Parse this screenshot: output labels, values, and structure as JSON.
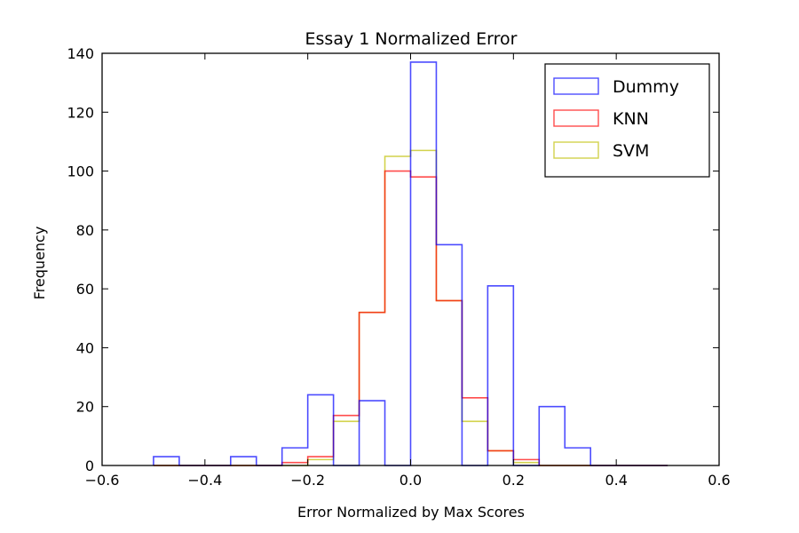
{
  "chart_data": {
    "type": "histogram",
    "title": "Essay 1 Normalized Error",
    "xlabel": "Error Normalized by Max Scores",
    "ylabel": "Frequency",
    "xlim": [
      -0.6,
      0.6
    ],
    "ylim": [
      0,
      140
    ],
    "xticks": [
      -0.6,
      -0.4,
      -0.2,
      0.0,
      0.2,
      0.4,
      0.6
    ],
    "xtick_labels": [
      "−0.6",
      "−0.4",
      "−0.2",
      "0.0",
      "0.2",
      "0.4",
      "0.6"
    ],
    "yticks": [
      0,
      20,
      40,
      60,
      80,
      100,
      120,
      140
    ],
    "ytick_labels": [
      "0",
      "20",
      "40",
      "60",
      "80",
      "100",
      "120",
      "140"
    ],
    "grid": false,
    "legend": {
      "position": "top-right",
      "entries": [
        "Dummy",
        "KNN",
        "SVM"
      ]
    },
    "bin_edges": [
      -0.5,
      -0.45,
      -0.4,
      -0.35,
      -0.3,
      -0.25,
      -0.2,
      -0.15,
      -0.1,
      -0.05,
      0.0,
      0.05,
      0.1,
      0.15,
      0.2,
      0.25,
      0.3,
      0.35,
      0.4,
      0.45,
      0.5
    ],
    "series": [
      {
        "name": "Dummy",
        "color": "#0000ff",
        "values": [
          3,
          0,
          0,
          3,
          0,
          6,
          24,
          0,
          22,
          0,
          137,
          75,
          0,
          61,
          0,
          20,
          6,
          0,
          0,
          0
        ]
      },
      {
        "name": "KNN",
        "color": "#ff0000",
        "values": [
          0,
          0,
          0,
          0,
          0,
          1,
          3,
          17,
          52,
          100,
          98,
          56,
          23,
          5,
          2,
          0,
          0,
          0,
          0,
          0
        ]
      },
      {
        "name": "SVM",
        "color": "#bfbf00",
        "values": [
          0,
          0,
          0,
          0,
          0,
          0,
          2,
          15,
          52,
          105,
          107,
          56,
          15,
          5,
          1,
          0,
          0,
          0,
          0,
          0
        ]
      }
    ]
  }
}
